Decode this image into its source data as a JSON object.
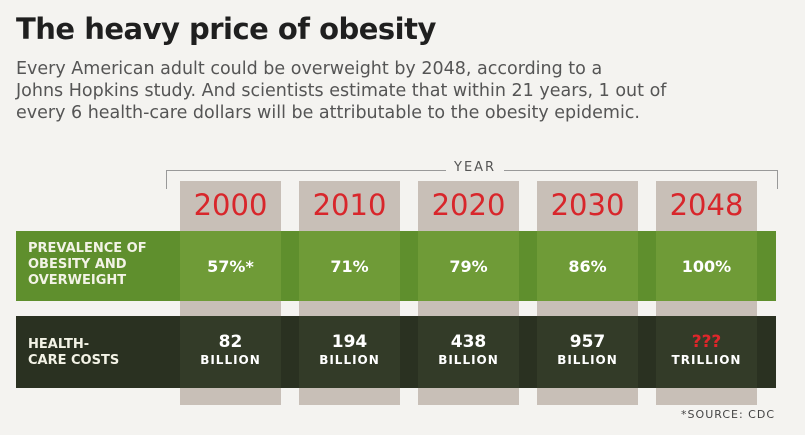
{
  "title": "The heavy price of obesity",
  "subtitle_lines": [
    "Every American adult could be overweight by 2048, according to a",
    "Johns Hopkins study. And scientists estimate that within 21 years, 1 out of",
    "every 6 health-care dollars will be attributable to the obesity epidemic."
  ],
  "year_header": "YEAR",
  "source": "*SOURCE: CDC",
  "colors": {
    "year_red": "#d8262b",
    "green_band": "#5f8f2d",
    "dark_band": "#2a3121",
    "column": "#c8bfb7"
  },
  "chart_data": {
    "type": "table",
    "title": "The heavy price of obesity",
    "columns": [
      "2000",
      "2010",
      "2020",
      "2030",
      "2048"
    ],
    "rows": [
      {
        "label_lines": [
          "PREVALENCE OF",
          "OBESITY AND",
          "OVERWEIGHT"
        ],
        "cells": [
          "57%*",
          "71%",
          "79%",
          "86%",
          "100%"
        ]
      },
      {
        "label_lines": [
          "HEALTH-",
          "CARE COSTS"
        ],
        "cells": [
          {
            "value": "82",
            "unit": "BILLION"
          },
          {
            "value": "194",
            "unit": "BILLION"
          },
          {
            "value": "438",
            "unit": "BILLION"
          },
          {
            "value": "957",
            "unit": "BILLION"
          },
          {
            "value": "???",
            "unit": "TRILLION"
          }
        ]
      }
    ]
  }
}
